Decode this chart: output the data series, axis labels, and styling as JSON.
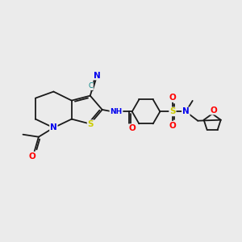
{
  "bg_color": "#ebebeb",
  "bond_color": "#1a1a1a",
  "bond_width": 1.3,
  "atom_colors": {
    "N": "#0000ee",
    "S": "#cccc00",
    "O": "#ff0000",
    "C_teal": "#008080",
    "H": "#5aaa9a",
    "default": "#1a1a1a"
  },
  "font_size": 7.5,
  "font_size_small": 6.0
}
